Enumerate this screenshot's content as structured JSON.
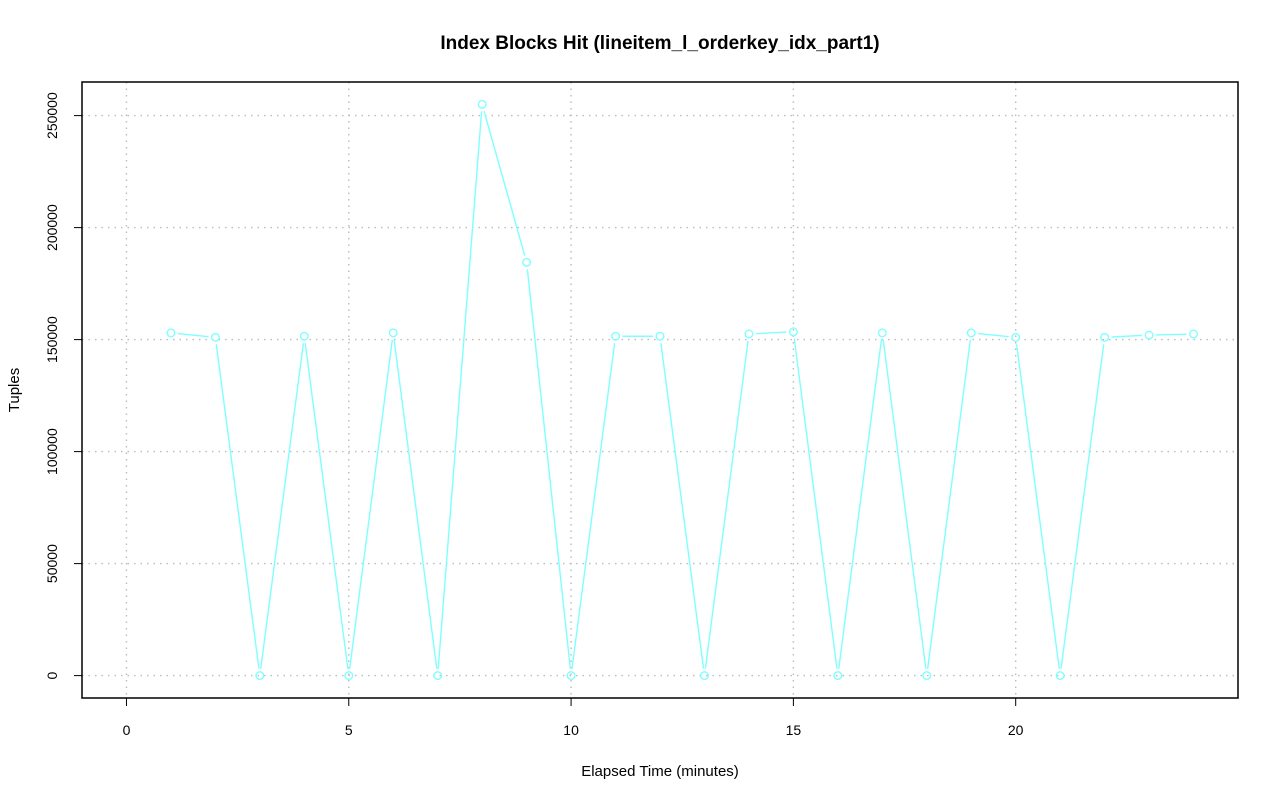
{
  "chart_data": {
    "type": "line",
    "title": "Index Blocks Hit (lineitem_l_orderkey_idx_part1)",
    "xlabel": "Elapsed Time (minutes)",
    "ylabel": "Tuples",
    "xlim": [
      -1,
      25
    ],
    "ylim": [
      -10000,
      265000
    ],
    "x_ticks": [
      0,
      5,
      10,
      15,
      20
    ],
    "y_ticks": [
      0,
      50000,
      100000,
      150000,
      200000,
      250000
    ],
    "x_tick_labels": [
      "0",
      "5",
      "10",
      "15",
      "20"
    ],
    "y_tick_labels": [
      "0",
      "50000",
      "100000",
      "150000",
      "200000",
      "250000"
    ],
    "grid": true,
    "series": [
      {
        "color": "#7FFFFF",
        "x": [
          1,
          2,
          3,
          4,
          5,
          6,
          7,
          8,
          9,
          10,
          11,
          12,
          13,
          14,
          15,
          16,
          17,
          18,
          19,
          20,
          21,
          22,
          23,
          24
        ],
        "values": [
          153000,
          151000,
          0,
          151500,
          0,
          153000,
          0,
          255000,
          184500,
          0,
          151500,
          151500,
          0,
          152500,
          153500,
          0,
          153000,
          0,
          153000,
          151000,
          0,
          151000,
          152000,
          152500
        ]
      }
    ]
  }
}
